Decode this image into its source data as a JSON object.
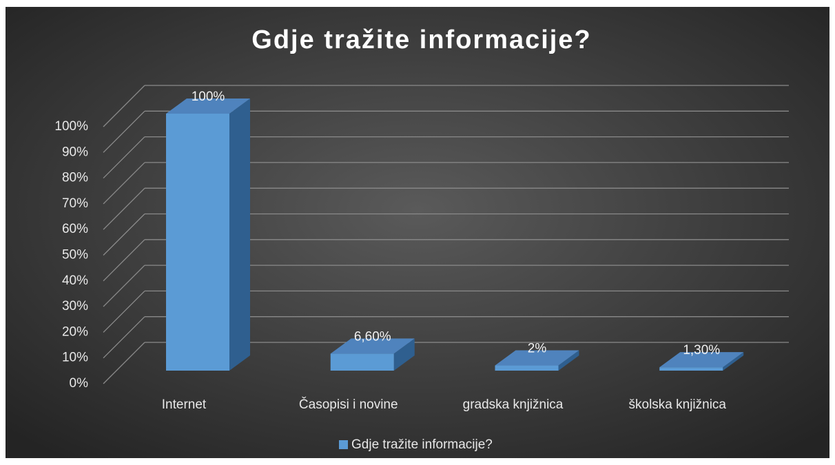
{
  "chart_data": {
    "type": "bar3d",
    "title": "Gdje tražite informacije?",
    "categories": [
      "Internet",
      "Časopisi i novine",
      "gradska knjižnica",
      "školska knjižnica"
    ],
    "series": [
      {
        "name": "Gdje tražite informacije?",
        "color": "#5b9bd5",
        "values": [
          100,
          6.6,
          2,
          1.3
        ],
        "value_labels": [
          "100%",
          "6,60%",
          "2%",
          "1,30%"
        ]
      }
    ],
    "ylim": [
      0,
      100
    ],
    "yticks": [
      {
        "value": 0,
        "label": "0%"
      },
      {
        "value": 10,
        "label": "10%"
      },
      {
        "value": 20,
        "label": "20%"
      },
      {
        "value": 30,
        "label": "30%"
      },
      {
        "value": 40,
        "label": "40%"
      },
      {
        "value": 50,
        "label": "50%"
      },
      {
        "value": 60,
        "label": "60%"
      },
      {
        "value": 70,
        "label": "70%"
      },
      {
        "value": 80,
        "label": "80%"
      },
      {
        "value": 90,
        "label": "90%"
      },
      {
        "value": 100,
        "label": "100%"
      }
    ],
    "grid": true,
    "legend": "bottom"
  }
}
